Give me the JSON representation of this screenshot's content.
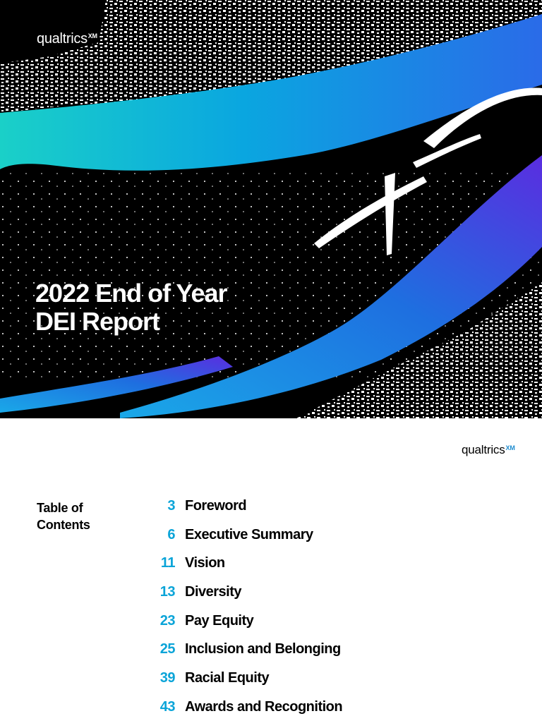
{
  "cover": {
    "brand": "qualtrics",
    "brand_mark": "XM",
    "title_line1": "2022 End of Year",
    "title_line2": "DEI Report"
  },
  "toc": {
    "brand": "qualtrics",
    "brand_mark": "XM",
    "heading_line1": "Table of",
    "heading_line2": "Contents",
    "items": [
      {
        "page": "3",
        "label": "Foreword"
      },
      {
        "page": "6",
        "label": "Executive Summary"
      },
      {
        "page": "11",
        "label": "Vision"
      },
      {
        "page": "13",
        "label": "Diversity"
      },
      {
        "page": "23",
        "label": "Pay Equity"
      },
      {
        "page": "25",
        "label": "Inclusion and Belonging"
      },
      {
        "page": "39",
        "label": "Racial Equity"
      },
      {
        "page": "43",
        "label": "Awards and Recognition"
      }
    ]
  },
  "colors": {
    "accent": "#0aa4d8",
    "gradient_teal": "#1ad0c8",
    "gradient_blue": "#1e6fe0",
    "gradient_violet": "#5a2de0"
  }
}
